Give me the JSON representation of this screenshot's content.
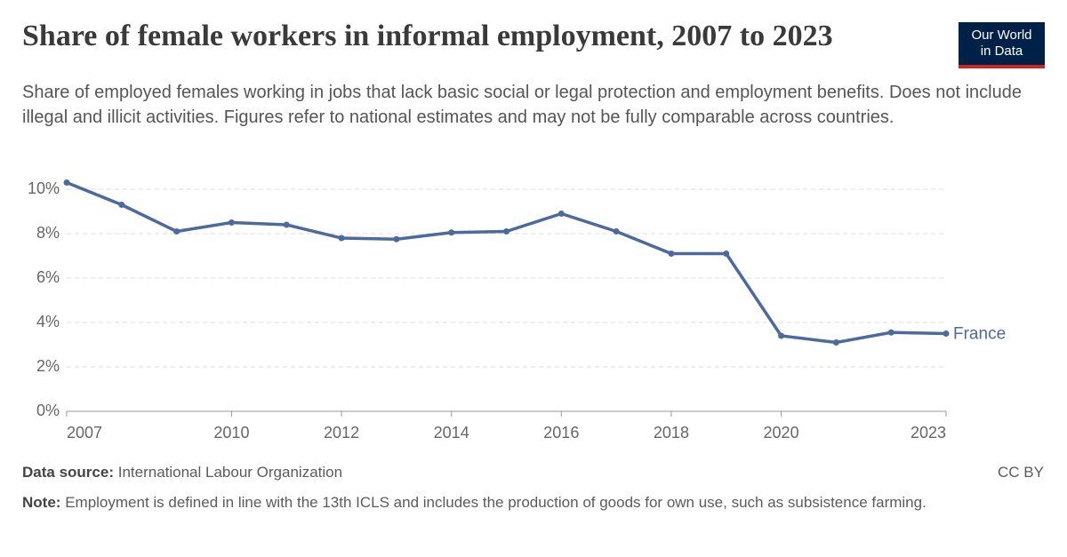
{
  "chart_data": {
    "type": "line",
    "title": "Share of female workers in informal employment, 2007 to 2023",
    "subtitle": "Share of employed females working in jobs that lack basic social or legal protection and employment benefits. Does not include illegal and illicit activities. Figures refer to national estimates and may not be fully comparable across countries.",
    "logo": [
      "Our World",
      "in Data"
    ],
    "x": [
      2007,
      2008,
      2009,
      2010,
      2011,
      2012,
      2013,
      2014,
      2015,
      2016,
      2017,
      2018,
      2019,
      2020,
      2021,
      2022,
      2023
    ],
    "series": [
      {
        "name": "France",
        "color": "#4c6a9c",
        "values": [
          10.3,
          9.3,
          8.1,
          8.5,
          8.4,
          7.8,
          7.75,
          8.05,
          8.1,
          8.9,
          8.1,
          7.1,
          7.1,
          3.4,
          3.1,
          3.55,
          3.5
        ]
      }
    ],
    "xlim": [
      2007,
      2023
    ],
    "xticks": [
      2007,
      2010,
      2012,
      2014,
      2016,
      2018,
      2020,
      2023
    ],
    "ylim": [
      0,
      10
    ],
    "yticks": [
      {
        "value": 0,
        "label": "0%"
      },
      {
        "value": 2,
        "label": "2%"
      },
      {
        "value": 4,
        "label": "4%"
      },
      {
        "value": 6,
        "label": "6%"
      },
      {
        "value": 8,
        "label": "8%"
      },
      {
        "value": 10,
        "label": "10%"
      }
    ],
    "grid": true,
    "source_label": "Data source:",
    "source": "International Labour Organization",
    "license": "CC BY",
    "note_label": "Note:",
    "note": "Employment is defined in line with the 13th ICLS and includes the production of goods for own use, such as subsistence farming."
  }
}
